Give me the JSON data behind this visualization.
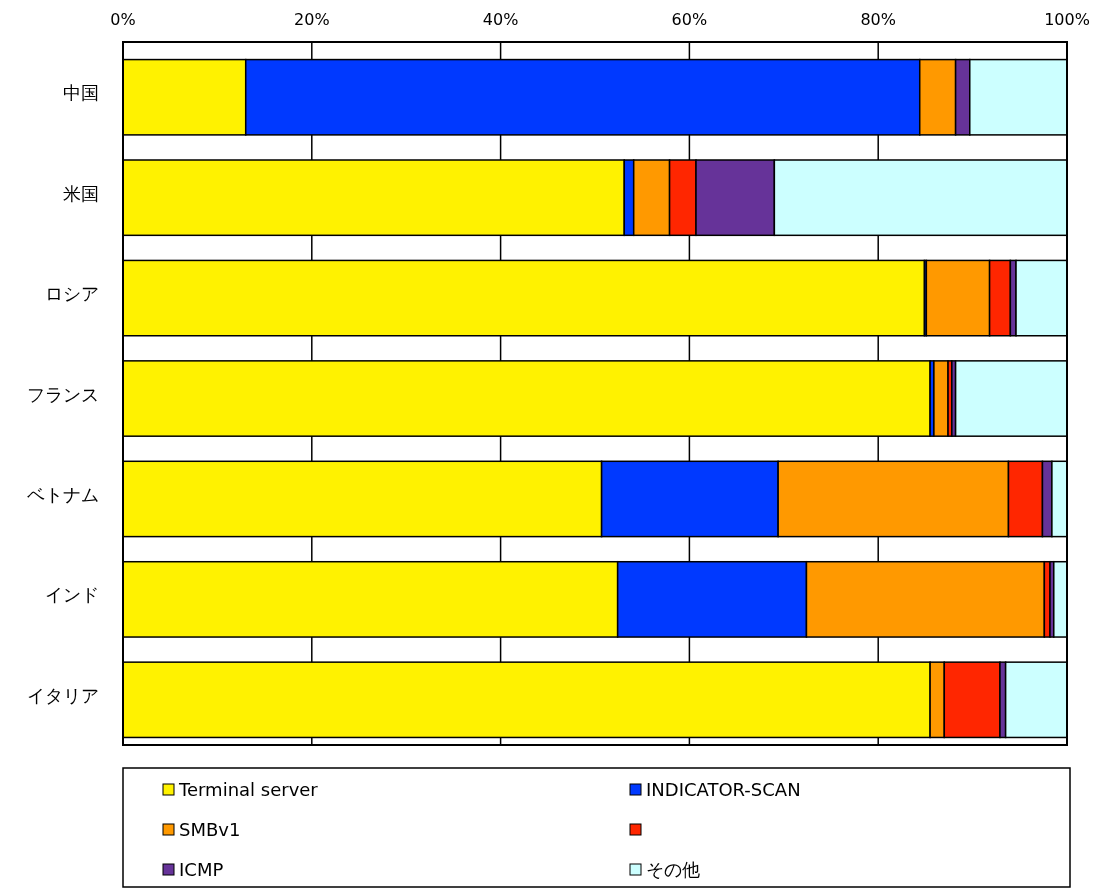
{
  "chart_data": {
    "type": "bar",
    "orientation": "horizontal",
    "stacked": true,
    "categories": [
      "中国",
      "米国",
      "ロシア",
      "フランス",
      "ベトナム",
      "インド",
      "イタリア"
    ],
    "series": [
      {
        "name": "Terminal server",
        "color": "#fff200",
        "values": [
          13.0,
          53.1,
          84.9,
          85.5,
          50.7,
          52.4,
          85.5
        ]
      },
      {
        "name": "INDICATOR-SCAN",
        "color": "#0039ff",
        "values": [
          71.4,
          1.0,
          0.2,
          0.4,
          18.7,
          20.0,
          0
        ]
      },
      {
        "name": "SMBv1",
        "color": "#ff9900",
        "values": [
          3.8,
          3.8,
          6.7,
          1.5,
          24.4,
          25.2,
          1.5
        ]
      },
      {
        "color": "#ff2600",
        "values": [
          0,
          2.8,
          2.2,
          0.4,
          3.6,
          0.6,
          5.9
        ]
      },
      {
        "name": "ICMP",
        "color": "#663399",
        "values": [
          1.5,
          8.3,
          0.6,
          0.4,
          1.0,
          0.4,
          0.6
        ]
      },
      {
        "name": "その他",
        "color": "#ccffff",
        "values": [
          10.3,
          31.0,
          5.4,
          11.8,
          1.6,
          1.4,
          6.5
        ]
      }
    ],
    "xlim": [
      0,
      100
    ],
    "xticks": [
      {
        "value": 0,
        "label": "0%"
      },
      {
        "value": 20,
        "label": "20%"
      },
      {
        "value": 40,
        "label": "40%"
      },
      {
        "value": 60,
        "label": "60%"
      },
      {
        "value": 80,
        "label": "80%"
      },
      {
        "value": 100,
        "label": "100%"
      }
    ],
    "grid": "x",
    "legend": "bottom"
  }
}
